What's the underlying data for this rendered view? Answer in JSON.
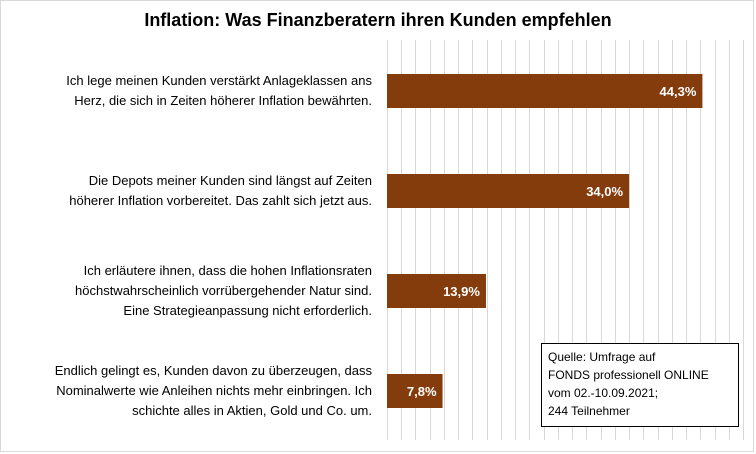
{
  "chart_data": {
    "type": "bar",
    "orientation": "horizontal",
    "title": "Inflation: Was Finanzberatern ihren Kunden empfehlen",
    "categories": [
      [
        "Ich lege meinen Kunden verstärkt Anlageklassen ans",
        "Herz, die sich in Zeiten höherer Inflation bewährten."
      ],
      [
        "Die Depots meiner Kunden sind längst auf Zeiten",
        "höherer Inflation vorbereitet. Das zahlt sich jetzt aus."
      ],
      [
        "Ich erläutere ihnen, dass die hohen Inflationsraten",
        "höchstwahrscheinlich vorrübergehender Natur sind.",
        "Eine Strategieanpassung nicht erforderlich."
      ],
      [
        "Endlich gelingt es, Kunden davon zu überzeugen, dass",
        "Nominalwerte wie Anleihen nichts mehr einbringen. Ich",
        "schichte alles in Aktien, Gold und Co. um."
      ]
    ],
    "values": [
      44.3,
      34.0,
      13.9,
      7.8
    ],
    "data_labels": [
      "44,3%",
      "34,0%",
      "13,9%",
      "7,8%"
    ],
    "xlim": [
      0,
      50
    ],
    "grid": true,
    "bar_color": "#843c0c",
    "grid_color": "#d9d9d9"
  },
  "source_note": {
    "lines": [
      "Quelle: Umfrage auf",
      "FONDS professionell ONLINE",
      "vom 02.-10.09.2021;",
      "244 Teilnehmer"
    ]
  }
}
